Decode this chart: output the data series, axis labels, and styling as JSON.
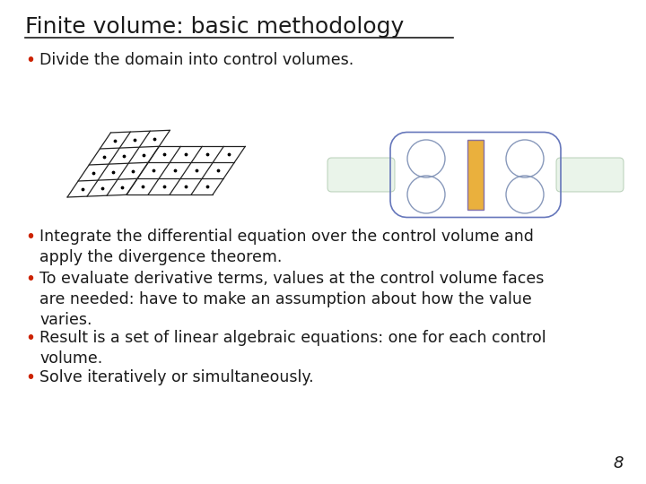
{
  "title": "Finite volume: basic methodology",
  "bullet1": "Divide the domain into control volumes.",
  "bullet2a": "Integrate the differential equation over the control volume and\napply the divergence theorem.",
  "bullet2b": "To evaluate derivative terms, values at the control volume faces\nare needed: have to make an assumption about how the value\nvaries.",
  "bullet2c": "Result is a set of linear algebraic equations: one for each control\nvolume.",
  "bullet2d": "Solve iteratively or simultaneously.",
  "page_number": "8",
  "bg_color": "#ffffff",
  "text_color": "#1a1a1a",
  "title_fontsize": 18,
  "body_fontsize": 12.5,
  "bullet_color": "#cc2200",
  "mesh_edge_color": "#8899cc",
  "mesh_boundary_color": "#7799aa",
  "orange_fill": "#e8a828",
  "orange_edge": "#8855aa",
  "green_rect_color": "#aaccaa"
}
